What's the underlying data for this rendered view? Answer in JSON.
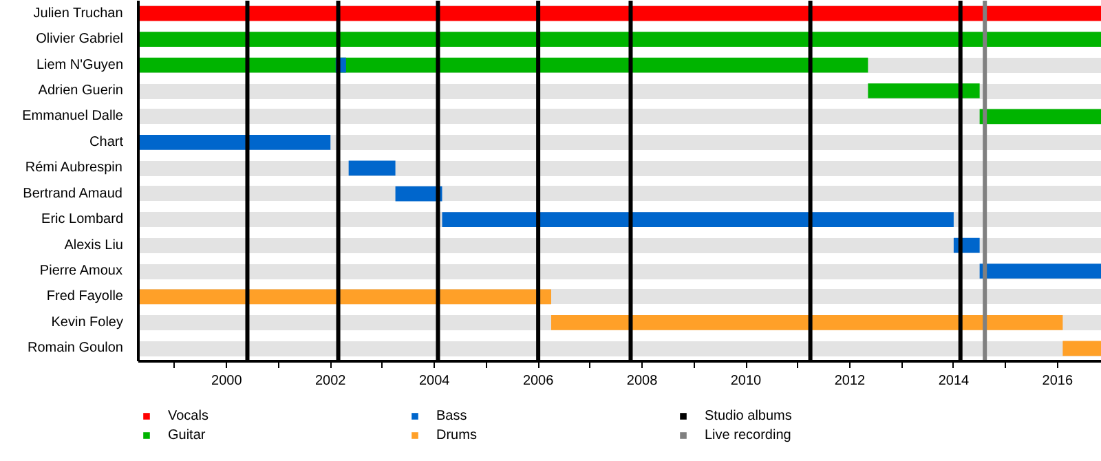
{
  "chart_data": {
    "type": "bar",
    "orientation": "horizontal",
    "categories": [
      "Julien Truchan",
      "Olivier Gabriel",
      "Liem N'Guyen",
      "Adrien Guerin",
      "Emmanuel Dalle",
      "Chart",
      "Rémi Aubrespin",
      "Bertrand Amaud",
      "Eric Lombard",
      "Alexis Liu",
      "Pierre Amoux",
      "Fred Fayolle",
      "Kevin Foley",
      "Romain Goulon"
    ],
    "series": [
      {
        "name": "Vocals",
        "color": "#ff0000",
        "base": [
          1998.3,
          null,
          null,
          null,
          null,
          null,
          null,
          null,
          null,
          null,
          null,
          null,
          null,
          null
        ],
        "values": [
          18.55,
          null,
          null,
          null,
          null,
          null,
          null,
          null,
          null,
          null,
          null,
          null,
          null,
          null
        ]
      },
      {
        "name": "Guitar",
        "color": "#00b400",
        "base": [
          null,
          1998.3,
          1998.3,
          2012.35,
          2014.5,
          null,
          null,
          null,
          null,
          null,
          null,
          null,
          null,
          null
        ],
        "values": [
          null,
          18.55,
          14.05,
          2.15,
          2.35,
          null,
          null,
          null,
          null,
          null,
          null,
          null,
          null,
          null
        ]
      },
      {
        "name": "Bass",
        "color": "#0066cc",
        "base": [
          null,
          null,
          2002.1,
          null,
          null,
          1998.3,
          2002.35,
          2003.25,
          2004.15,
          2014.0,
          2014.5,
          null,
          null,
          null
        ],
        "values": [
          null,
          null,
          0.2,
          null,
          null,
          3.7,
          0.9,
          0.9,
          9.85,
          0.5,
          2.35,
          null,
          null,
          null
        ]
      },
      {
        "name": "Drums",
        "color": "#ffa028",
        "base": [
          null,
          null,
          null,
          null,
          null,
          null,
          null,
          null,
          null,
          null,
          null,
          1998.3,
          2006.25,
          2016.1
        ],
        "values": [
          null,
          null,
          null,
          null,
          null,
          null,
          null,
          null,
          null,
          null,
          null,
          7.95,
          9.85,
          0.75
        ]
      }
    ],
    "xlim": [
      1998.3,
      2016.85
    ],
    "xticks": [
      {
        "value": 1999,
        "label": null
      },
      2000,
      {
        "value": 2001,
        "label": null
      },
      2002,
      {
        "value": 2003,
        "label": null
      },
      2004,
      {
        "value": 2005,
        "label": null
      },
      2006,
      {
        "value": 2007,
        "label": null
      },
      2008,
      {
        "value": 2009,
        "label": null
      },
      2010,
      {
        "value": 2011,
        "label": null
      },
      2012,
      {
        "value": 2013,
        "label": null
      },
      2014,
      {
        "value": 2015,
        "label": null
      },
      2016
    ],
    "ref_lines": [
      {
        "axis": "x",
        "value": 2000.4,
        "label": "Studio albums",
        "color": "#000000"
      },
      {
        "axis": "x",
        "value": 2002.15,
        "color": "#000000"
      },
      {
        "axis": "x",
        "value": 2004.07,
        "color": "#000000"
      },
      {
        "axis": "x",
        "value": 2006.0,
        "color": "#000000"
      },
      {
        "axis": "x",
        "value": 2007.78,
        "color": "#000000"
      },
      {
        "axis": "x",
        "value": 2011.24,
        "color": "#000000"
      },
      {
        "axis": "x",
        "value": 2014.13,
        "color": "#000000"
      },
      {
        "axis": "x",
        "value": 2014.6,
        "label": "Live recording",
        "color": "#808080"
      }
    ],
    "grid": "y",
    "legend": "bottom"
  }
}
